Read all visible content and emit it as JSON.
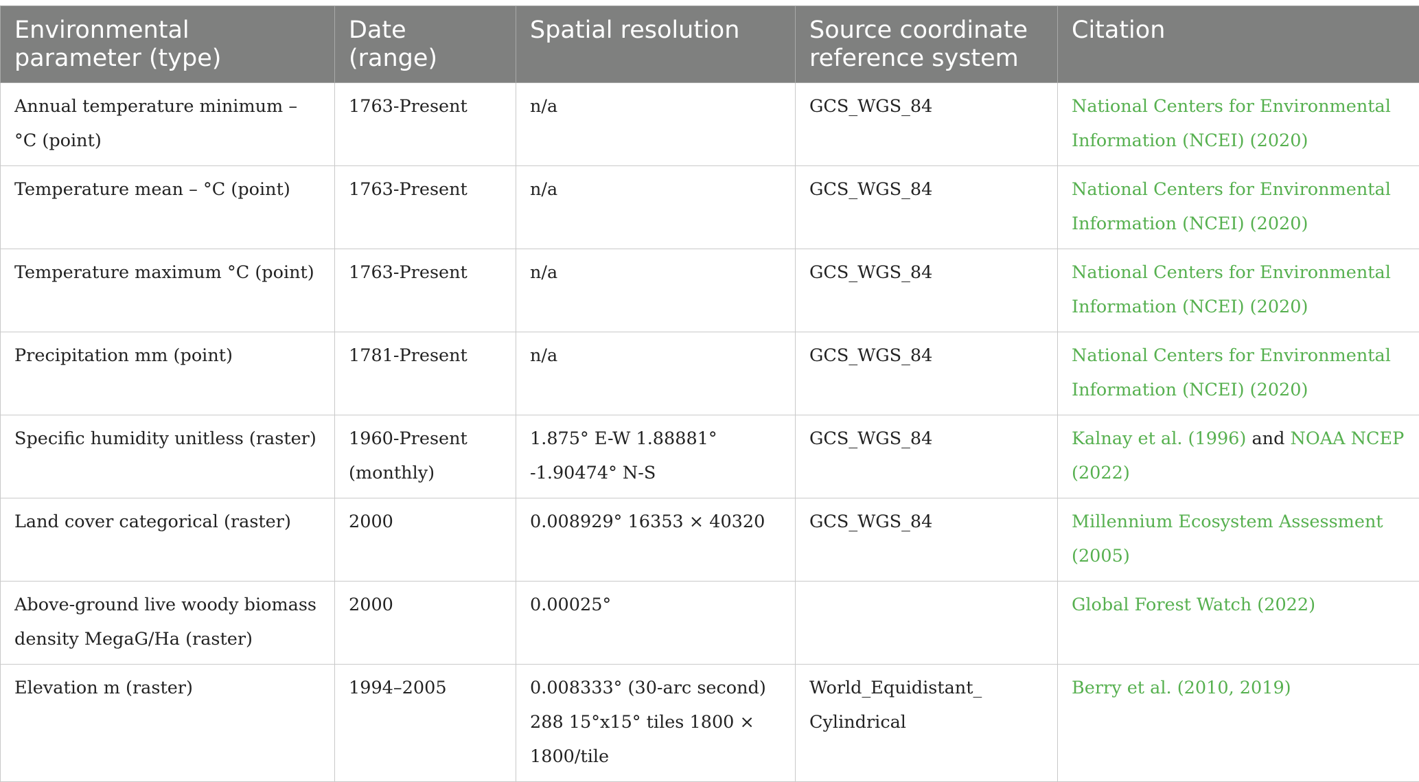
{
  "headers": [
    "Environmental parameter (type)",
    "Date (range)",
    "Spatial resolution",
    "Source coordinate reference system",
    "Citation"
  ],
  "colors": {
    "header_bg": "#7f807f",
    "link": "#56b04f",
    "border": "#c9c9c9"
  },
  "rows": [
    {
      "parameter": "Annual temperature minimum – °C (point)",
      "date": "1763-Present",
      "resolution": "n/a",
      "crs": "GCS_WGS_84",
      "citation": [
        "National Centers for Environmental Information (NCEI) (2020)"
      ]
    },
    {
      "parameter": "Temperature mean – °C (point)",
      "date": "1763-Present",
      "resolution": "n/a",
      "crs": "GCS_WGS_84",
      "citation": [
        "National Centers for Environmental Information (NCEI) (2020)"
      ]
    },
    {
      "parameter": "Temperature maximum °C (point)",
      "date": "1763-Present",
      "resolution": "n/a",
      "crs": "GCS_WGS_84",
      "citation": [
        "National Centers for Environmental Information (NCEI) (2020)"
      ]
    },
    {
      "parameter": "Precipitation mm (point)",
      "date": "1781-Present",
      "resolution": "n/a",
      "crs": "GCS_WGS_84",
      "citation": [
        "National Centers for Environmental Information (NCEI) (2020)"
      ]
    },
    {
      "parameter": "Specific humidity unitless (raster)",
      "date": "1960-Present (monthly)",
      "resolution": "1.875° E-W 1.88881° -1.90474° N-S",
      "crs": "GCS_WGS_84",
      "citation": [
        "Kalnay et al. (1996)",
        " and ",
        "NOAA NCEP (2022)"
      ]
    },
    {
      "parameter": "Land cover categorical (raster)",
      "date": "2000",
      "resolution": "0.008929° 16353 × 40320",
      "crs": "GCS_WGS_84",
      "citation": [
        "Millennium Ecosystem Assessment (2005)"
      ]
    },
    {
      "parameter": "Above-ground live woody biomass density MegaG/Ha (raster)",
      "date": "2000",
      "resolution": "0.00025°",
      "crs": "",
      "citation": [
        "Global Forest Watch (2022)"
      ]
    },
    {
      "parameter": "Elevation m (raster)",
      "date": "1994–2005",
      "resolution": "0.008333° (30-arc second) 288 15°x15° tiles 1800 × 1800/tile",
      "crs": "World_Equidistant_ Cylindrical",
      "citation": [
        "Berry et al. (2010, 2019)"
      ]
    }
  ]
}
